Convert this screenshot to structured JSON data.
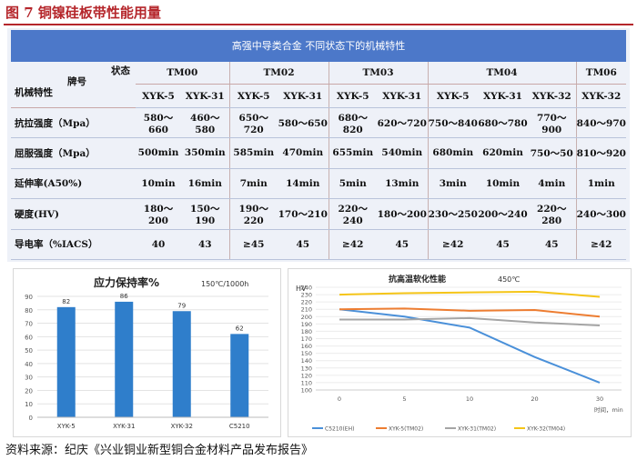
{
  "figure": {
    "title": "图 7  铜镍硅板带性能用量",
    "source": "资料来源：纪庆《兴业铜业新型铜合金材料产品发布报告》"
  },
  "table": {
    "header": "高强中导类合金 不同状态下的机械特性",
    "corner": {
      "state": "状态",
      "grade": "牌号",
      "property": "机械特性"
    },
    "alloys": [
      "TM00",
      "TM02",
      "TM03",
      "TM04",
      "TM06"
    ],
    "grades": [
      "XYK-5",
      "XYK-31",
      "XYK-5",
      "XYK-31",
      "XYK-5",
      "XYK-31",
      "XYK-5",
      "XYK-31",
      "XYK-32",
      "XYK-32"
    ],
    "rows": [
      {
        "label": "抗拉强度（Mpa）",
        "values": [
          "580～660",
          "460～580",
          "650～720",
          "580～650",
          "680～820",
          "620～720",
          "750～840",
          "680～780",
          "770～900",
          "840～970"
        ]
      },
      {
        "label": "屈服强度（Mpa）",
        "values": [
          "500min",
          "350min",
          "585min",
          "470min",
          "655min",
          "540min",
          "680min",
          "620min",
          "750～50",
          "810～920"
        ]
      },
      {
        "label": "延伸率(A50%)",
        "values": [
          "10min",
          "16min",
          "7min",
          "14min",
          "5min",
          "13min",
          "3min",
          "10min",
          "4min",
          "1min"
        ]
      },
      {
        "label": "硬度(HV)",
        "values": [
          "180～200",
          "150～190",
          "190～220",
          "170～210",
          "220～240",
          "180～200",
          "230～250",
          "200～240",
          "220～280",
          "240～300"
        ]
      },
      {
        "label": "导电率（%IACS）",
        "values": [
          "40",
          "43",
          "≥45",
          "45",
          "≥42",
          "45",
          "≥42",
          "45",
          "45",
          "≥42"
        ]
      }
    ]
  },
  "chart_data": [
    {
      "type": "bar",
      "title": "应力保持率%",
      "subtitle": "150℃/1000h",
      "categories": [
        "XYK-5",
        "XYK-31",
        "XYK-32",
        "C5210"
      ],
      "values": [
        82,
        86,
        79,
        62
      ],
      "ylim": [
        0,
        90
      ],
      "yticks": [
        0,
        10,
        20,
        30,
        40,
        50,
        60,
        70,
        80,
        90
      ],
      "color": "#2f7ecb",
      "grid": true
    },
    {
      "type": "line",
      "title": "抗高温软化性能",
      "subtitle": "450℃",
      "ylabel": "HV",
      "xlabel": "时间，min",
      "x": [
        0,
        5,
        10,
        20,
        30
      ],
      "ylim": [
        100,
        240
      ],
      "yticks": [
        100,
        110,
        120,
        130,
        140,
        150,
        160,
        170,
        180,
        190,
        200,
        210,
        220,
        230,
        240
      ],
      "grid": true,
      "series": [
        {
          "name": "C5210(EH)",
          "color": "#4a90d9",
          "values": [
            210,
            200,
            185,
            145,
            110
          ]
        },
        {
          "name": "XYK-5(TM02)",
          "color": "#ed7d31",
          "values": [
            210,
            211,
            208,
            209,
            200
          ]
        },
        {
          "name": "XYK-31(TM02)",
          "color": "#a5a5a5",
          "values": [
            196,
            196,
            198,
            192,
            188
          ]
        },
        {
          "name": "XYK-32(TM04)",
          "color": "#f5c518",
          "values": [
            230,
            232,
            233,
            234,
            227
          ]
        }
      ]
    }
  ]
}
